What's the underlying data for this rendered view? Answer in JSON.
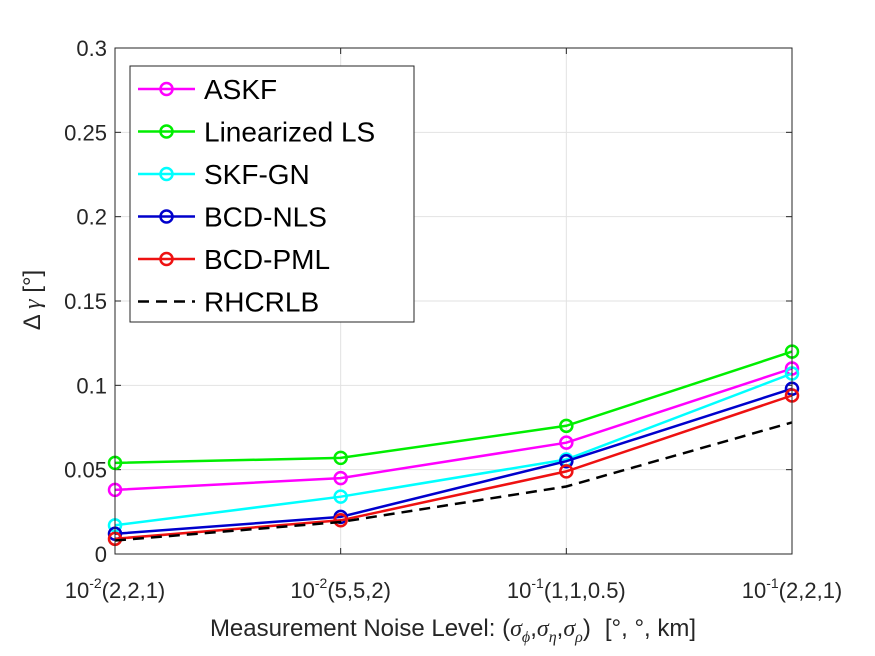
{
  "chart_data": {
    "type": "line",
    "title": "",
    "categories": [
      {
        "base": "10",
        "exp": "-2",
        "rest": "(2,2,1)"
      },
      {
        "base": "10",
        "exp": "-2",
        "rest": "(5,5,2)"
      },
      {
        "base": "10",
        "exp": "-1",
        "rest": "(1,1,0.5)"
      },
      {
        "base": "10",
        "exp": "-1",
        "rest": "(2,2,1)"
      }
    ],
    "xlabel": {
      "prefix": "Measurement Noise Level: (",
      "sigma": "σ",
      "sub1": "ϕ",
      "sub2": "η",
      "sub3": "ρ",
      "comma": ",",
      "close": ")",
      "units": "[°, °, km]"
    },
    "ylabel": {
      "delta": "Δ",
      "gamma": "γ",
      "units": "[°]"
    },
    "ylim": [
      0,
      0.3
    ],
    "yticks": [
      "0",
      "0.05",
      "0.1",
      "0.15",
      "0.2",
      "0.25",
      "0.3"
    ],
    "ytick_values": [
      0,
      0.05,
      0.1,
      0.15,
      0.2,
      0.25,
      0.3
    ],
    "grid": true,
    "legend_position": "top-left",
    "series": [
      {
        "name": "ASKF",
        "color": "#ff00ff",
        "dashed": false,
        "marker": true,
        "values": [
          0.038,
          0.045,
          0.066,
          0.11
        ]
      },
      {
        "name": "Linearized LS",
        "color": "#00ee00",
        "dashed": false,
        "marker": true,
        "values": [
          0.054,
          0.057,
          0.076,
          0.12
        ]
      },
      {
        "name": "SKF-GN",
        "color": "#00ffff",
        "dashed": false,
        "marker": true,
        "values": [
          0.017,
          0.034,
          0.056,
          0.107
        ]
      },
      {
        "name": "BCD-NLS",
        "color": "#0000cc",
        "dashed": false,
        "marker": true,
        "values": [
          0.012,
          0.022,
          0.055,
          0.098
        ]
      },
      {
        "name": "BCD-PML",
        "color": "#ee1111",
        "dashed": false,
        "marker": true,
        "values": [
          0.009,
          0.02,
          0.049,
          0.094
        ]
      },
      {
        "name": "RHCRLB",
        "color": "#000000",
        "dashed": true,
        "marker": false,
        "values": [
          0.008,
          0.019,
          0.04,
          0.078
        ]
      }
    ]
  }
}
